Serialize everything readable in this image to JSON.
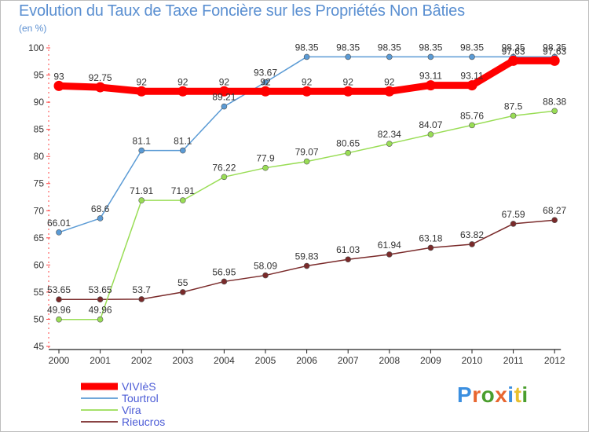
{
  "title": "Evolution du Taux de Taxe Foncière sur les Propriétés Non Bâties",
  "subtitle": "(en %)",
  "logo": "Proxiti",
  "logo_letters": [
    "P",
    "r",
    "o",
    "x",
    "i",
    "t",
    "i"
  ],
  "logo_colors": [
    "#3b8fe0",
    "#e8662f",
    "#4a9e2d",
    "#e8662f",
    "#3b8fe0",
    "#e8c02f",
    "#4a9e2d"
  ],
  "chart_data": {
    "type": "line",
    "title": "Evolution du Taux de Taxe Foncière sur les Propriétés Non Bâties",
    "ylabel": "(en %)",
    "xlabel": "",
    "x": [
      "2000",
      "2001",
      "2002",
      "2003",
      "2004",
      "2005",
      "2006",
      "2007",
      "2008",
      "2009",
      "2010",
      "2011",
      "2012"
    ],
    "ylim": [
      45,
      100
    ],
    "yticks": [
      "45",
      "50",
      "55",
      "60",
      "65",
      "70",
      "75",
      "80",
      "85",
      "90",
      "95",
      "100"
    ],
    "grid": false,
    "legend_position": "bottom-left",
    "series": [
      {
        "name": "VIVIèS",
        "color": "#ff0000",
        "values": [
          93,
          92.75,
          92,
          92,
          92,
          92,
          92,
          92,
          92,
          93.11,
          93.11,
          97.63,
          97.63
        ],
        "labels": [
          "93",
          "92.75",
          "92",
          "92",
          "92",
          "92",
          "92",
          "92",
          "92",
          "93.11",
          "93.11",
          "97.63",
          "97.63"
        ]
      },
      {
        "name": "Tourtrol",
        "color": "#5b9bd5",
        "values": [
          66.01,
          68.6,
          81.1,
          81.1,
          89.21,
          93.67,
          98.35,
          98.35,
          98.35,
          98.35,
          98.35,
          98.35,
          98.35
        ],
        "labels": [
          "66.01",
          "68.6",
          "81.1",
          "81.1",
          "89.21",
          "93.67",
          "98.35",
          "98.35",
          "98.35",
          "98.35",
          "98.35",
          "98.35",
          "98.35"
        ]
      },
      {
        "name": "Vira",
        "color": "#99dd55",
        "values": [
          49.96,
          49.96,
          71.91,
          71.91,
          76.22,
          77.9,
          79.07,
          80.65,
          82.34,
          84.07,
          85.76,
          87.5,
          88.38
        ],
        "labels": [
          "49.96",
          "49.96",
          "71.91",
          "71.91",
          "76.22",
          "77.9",
          "79.07",
          "80.65",
          "82.34",
          "84.07",
          "85.76",
          "87.5",
          "88.38"
        ]
      },
      {
        "name": "Rieucros",
        "color": "#7a2a2a",
        "values": [
          53.65,
          53.65,
          53.7,
          55,
          56.95,
          58.09,
          59.83,
          61.03,
          61.94,
          63.18,
          63.82,
          67.59,
          68.27
        ],
        "labels": [
          "53.65",
          "53.65",
          "53.7",
          "55",
          "56.95",
          "58.09",
          "59.83",
          "61.03",
          "61.94",
          "63.18",
          "63.82",
          "67.59",
          "68.27"
        ]
      }
    ]
  }
}
